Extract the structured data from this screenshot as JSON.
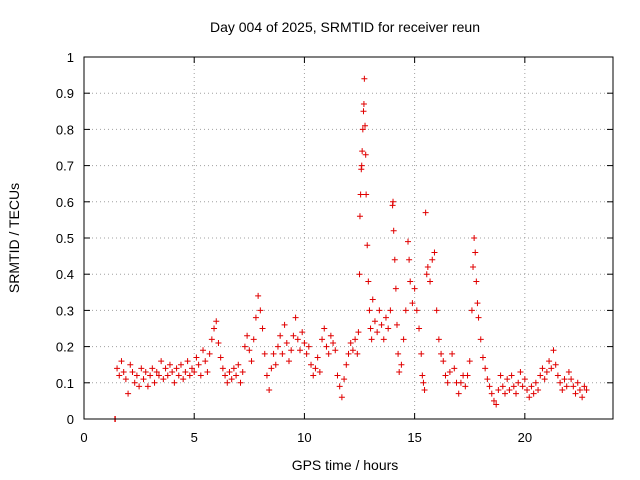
{
  "chart_data": {
    "type": "scatter",
    "title": "Day 004 of 2025, SRMTID for receiver reun",
    "xlabel": "GPS time / hours",
    "ylabel": "SRMTID / TECUs",
    "xlim": [
      0,
      24
    ],
    "ylim": [
      0,
      1
    ],
    "xticks": [
      0,
      5,
      10,
      15,
      20
    ],
    "yticks": [
      0,
      0.1,
      0.2,
      0.3,
      0.4,
      0.5,
      0.6,
      0.7,
      0.8,
      0.9,
      1
    ],
    "xtick_labels": [
      "0",
      "5",
      "10",
      "15",
      "20"
    ],
    "ytick_labels": [
      "0",
      "0.1",
      "0.2",
      "0.3",
      "0.4",
      "0.5",
      "0.6",
      "0.7",
      "0.8",
      "0.9",
      "1"
    ],
    "grid": true,
    "marker": "+",
    "color": "#e00000",
    "series": [
      {
        "name": "SRMTID",
        "points": [
          [
            1.4,
            0.0
          ],
          [
            1.42,
            0.0
          ],
          [
            1.5,
            0.14
          ],
          [
            1.6,
            0.12
          ],
          [
            1.7,
            0.16
          ],
          [
            1.8,
            0.13
          ],
          [
            1.9,
            0.11
          ],
          [
            2.0,
            0.07
          ],
          [
            2.1,
            0.15
          ],
          [
            2.2,
            0.13
          ],
          [
            2.3,
            0.1
          ],
          [
            2.4,
            0.12
          ],
          [
            2.5,
            0.09
          ],
          [
            2.6,
            0.14
          ],
          [
            2.7,
            0.11
          ],
          [
            2.8,
            0.13
          ],
          [
            2.9,
            0.09
          ],
          [
            3.0,
            0.12
          ],
          [
            3.1,
            0.14
          ],
          [
            3.2,
            0.1
          ],
          [
            3.3,
            0.13
          ],
          [
            3.4,
            0.12
          ],
          [
            3.5,
            0.16
          ],
          [
            3.6,
            0.11
          ],
          [
            3.7,
            0.14
          ],
          [
            3.8,
            0.12
          ],
          [
            3.9,
            0.15
          ],
          [
            4.0,
            0.13
          ],
          [
            4.1,
            0.1
          ],
          [
            4.2,
            0.14
          ],
          [
            4.3,
            0.12
          ],
          [
            4.4,
            0.15
          ],
          [
            4.5,
            0.11
          ],
          [
            4.6,
            0.13
          ],
          [
            4.7,
            0.16
          ],
          [
            4.8,
            0.12
          ],
          [
            4.9,
            0.14
          ],
          [
            5.0,
            0.13
          ],
          [
            5.1,
            0.17
          ],
          [
            5.2,
            0.15
          ],
          [
            5.3,
            0.12
          ],
          [
            5.4,
            0.19
          ],
          [
            5.5,
            0.16
          ],
          [
            5.6,
            0.13
          ],
          [
            5.7,
            0.18
          ],
          [
            5.8,
            0.22
          ],
          [
            5.9,
            0.25
          ],
          [
            6.0,
            0.27
          ],
          [
            6.1,
            0.21
          ],
          [
            6.2,
            0.17
          ],
          [
            6.3,
            0.14
          ],
          [
            6.4,
            0.12
          ],
          [
            6.5,
            0.1
          ],
          [
            6.6,
            0.13
          ],
          [
            6.7,
            0.11
          ],
          [
            6.8,
            0.14
          ],
          [
            6.9,
            0.12
          ],
          [
            7.0,
            0.15
          ],
          [
            7.1,
            0.1
          ],
          [
            7.2,
            0.13
          ],
          [
            7.3,
            0.2
          ],
          [
            7.4,
            0.23
          ],
          [
            7.5,
            0.19
          ],
          [
            7.6,
            0.16
          ],
          [
            7.7,
            0.22
          ],
          [
            7.8,
            0.28
          ],
          [
            7.9,
            0.34
          ],
          [
            8.0,
            0.3
          ],
          [
            8.1,
            0.25
          ],
          [
            8.2,
            0.18
          ],
          [
            8.3,
            0.12
          ],
          [
            8.4,
            0.08
          ],
          [
            8.5,
            0.14
          ],
          [
            8.6,
            0.18
          ],
          [
            8.7,
            0.15
          ],
          [
            8.8,
            0.2
          ],
          [
            8.9,
            0.23
          ],
          [
            9.0,
            0.18
          ],
          [
            9.1,
            0.26
          ],
          [
            9.2,
            0.21
          ],
          [
            9.3,
            0.16
          ],
          [
            9.4,
            0.19
          ],
          [
            9.5,
            0.23
          ],
          [
            9.6,
            0.28
          ],
          [
            9.7,
            0.22
          ],
          [
            9.8,
            0.19
          ],
          [
            9.9,
            0.24
          ],
          [
            10.0,
            0.21
          ],
          [
            10.1,
            0.18
          ],
          [
            10.2,
            0.2
          ],
          [
            10.3,
            0.15
          ],
          [
            10.4,
            0.12
          ],
          [
            10.5,
            0.14
          ],
          [
            10.6,
            0.17
          ],
          [
            10.7,
            0.13
          ],
          [
            10.8,
            0.22
          ],
          [
            10.9,
            0.25
          ],
          [
            11.0,
            0.2
          ],
          [
            11.1,
            0.18
          ],
          [
            11.2,
            0.23
          ],
          [
            11.3,
            0.21
          ],
          [
            11.4,
            0.19
          ],
          [
            11.5,
            0.12
          ],
          [
            11.6,
            0.09
          ],
          [
            11.7,
            0.06
          ],
          [
            11.8,
            0.11
          ],
          [
            11.9,
            0.15
          ],
          [
            12.0,
            0.18
          ],
          [
            12.1,
            0.21
          ],
          [
            12.2,
            0.19
          ],
          [
            12.3,
            0.22
          ],
          [
            12.4,
            0.18
          ],
          [
            12.45,
            0.24
          ],
          [
            12.5,
            0.4
          ],
          [
            12.52,
            0.56
          ],
          [
            12.55,
            0.62
          ],
          [
            12.58,
            0.69
          ],
          [
            12.6,
            0.7
          ],
          [
            12.62,
            0.74
          ],
          [
            12.65,
            0.8
          ],
          [
            12.68,
            0.85
          ],
          [
            12.7,
            0.87
          ],
          [
            12.72,
            0.94
          ],
          [
            12.75,
            0.81
          ],
          [
            12.78,
            0.73
          ],
          [
            12.8,
            0.62
          ],
          [
            12.85,
            0.48
          ],
          [
            12.9,
            0.38
          ],
          [
            12.95,
            0.3
          ],
          [
            13.0,
            0.25
          ],
          [
            13.05,
            0.22
          ],
          [
            13.1,
            0.33
          ],
          [
            13.2,
            0.27
          ],
          [
            13.3,
            0.24
          ],
          [
            13.4,
            0.3
          ],
          [
            13.5,
            0.26
          ],
          [
            13.6,
            0.22
          ],
          [
            13.7,
            0.28
          ],
          [
            13.8,
            0.25
          ],
          [
            13.9,
            0.3
          ],
          [
            14.0,
            0.59
          ],
          [
            14.02,
            0.6
          ],
          [
            14.05,
            0.52
          ],
          [
            14.1,
            0.44
          ],
          [
            14.15,
            0.36
          ],
          [
            14.2,
            0.26
          ],
          [
            14.25,
            0.18
          ],
          [
            14.3,
            0.13
          ],
          [
            14.4,
            0.15
          ],
          [
            14.5,
            0.22
          ],
          [
            14.6,
            0.3
          ],
          [
            14.7,
            0.49
          ],
          [
            14.75,
            0.44
          ],
          [
            14.8,
            0.38
          ],
          [
            14.9,
            0.32
          ],
          [
            15.0,
            0.36
          ],
          [
            15.1,
            0.3
          ],
          [
            15.2,
            0.25
          ],
          [
            15.3,
            0.18
          ],
          [
            15.35,
            0.12
          ],
          [
            15.4,
            0.1
          ],
          [
            15.45,
            0.08
          ],
          [
            15.5,
            0.57
          ],
          [
            15.55,
            0.4
          ],
          [
            15.6,
            0.42
          ],
          [
            15.7,
            0.38
          ],
          [
            15.8,
            0.44
          ],
          [
            15.9,
            0.46
          ],
          [
            16.0,
            0.3
          ],
          [
            16.1,
            0.22
          ],
          [
            16.2,
            0.18
          ],
          [
            16.3,
            0.16
          ],
          [
            16.4,
            0.12
          ],
          [
            16.5,
            0.1
          ],
          [
            16.6,
            0.13
          ],
          [
            16.7,
            0.18
          ],
          [
            16.8,
            0.14
          ],
          [
            16.9,
            0.1
          ],
          [
            17.0,
            0.07
          ],
          [
            17.1,
            0.1
          ],
          [
            17.2,
            0.12
          ],
          [
            17.3,
            0.09
          ],
          [
            17.4,
            0.12
          ],
          [
            17.5,
            0.16
          ],
          [
            17.6,
            0.3
          ],
          [
            17.65,
            0.42
          ],
          [
            17.7,
            0.5
          ],
          [
            17.75,
            0.46
          ],
          [
            17.8,
            0.38
          ],
          [
            17.85,
            0.32
          ],
          [
            17.9,
            0.28
          ],
          [
            18.0,
            0.22
          ],
          [
            18.1,
            0.17
          ],
          [
            18.2,
            0.14
          ],
          [
            18.3,
            0.11
          ],
          [
            18.4,
            0.09
          ],
          [
            18.5,
            0.07
          ],
          [
            18.6,
            0.05
          ],
          [
            18.7,
            0.04
          ],
          [
            18.8,
            0.08
          ],
          [
            18.9,
            0.12
          ],
          [
            19.0,
            0.09
          ],
          [
            19.1,
            0.07
          ],
          [
            19.2,
            0.11
          ],
          [
            19.3,
            0.08
          ],
          [
            19.4,
            0.12
          ],
          [
            19.5,
            0.09
          ],
          [
            19.6,
            0.07
          ],
          [
            19.7,
            0.1
          ],
          [
            19.8,
            0.13
          ],
          [
            19.9,
            0.09
          ],
          [
            20.0,
            0.11
          ],
          [
            20.1,
            0.08
          ],
          [
            20.2,
            0.06
          ],
          [
            20.3,
            0.09
          ],
          [
            20.4,
            0.07
          ],
          [
            20.5,
            0.1
          ],
          [
            20.6,
            0.08
          ],
          [
            20.7,
            0.12
          ],
          [
            20.8,
            0.14
          ],
          [
            20.9,
            0.11
          ],
          [
            21.0,
            0.13
          ],
          [
            21.1,
            0.16
          ],
          [
            21.2,
            0.14
          ],
          [
            21.3,
            0.19
          ],
          [
            21.4,
            0.15
          ],
          [
            21.5,
            0.12
          ],
          [
            21.6,
            0.1
          ],
          [
            21.7,
            0.08
          ],
          [
            21.8,
            0.11
          ],
          [
            21.9,
            0.09
          ],
          [
            22.0,
            0.13
          ],
          [
            22.1,
            0.11
          ],
          [
            22.2,
            0.09
          ],
          [
            22.3,
            0.07
          ],
          [
            22.4,
            0.1
          ],
          [
            22.5,
            0.08
          ],
          [
            22.6,
            0.06
          ],
          [
            22.7,
            0.09
          ],
          [
            22.8,
            0.08
          ]
        ]
      }
    ]
  }
}
